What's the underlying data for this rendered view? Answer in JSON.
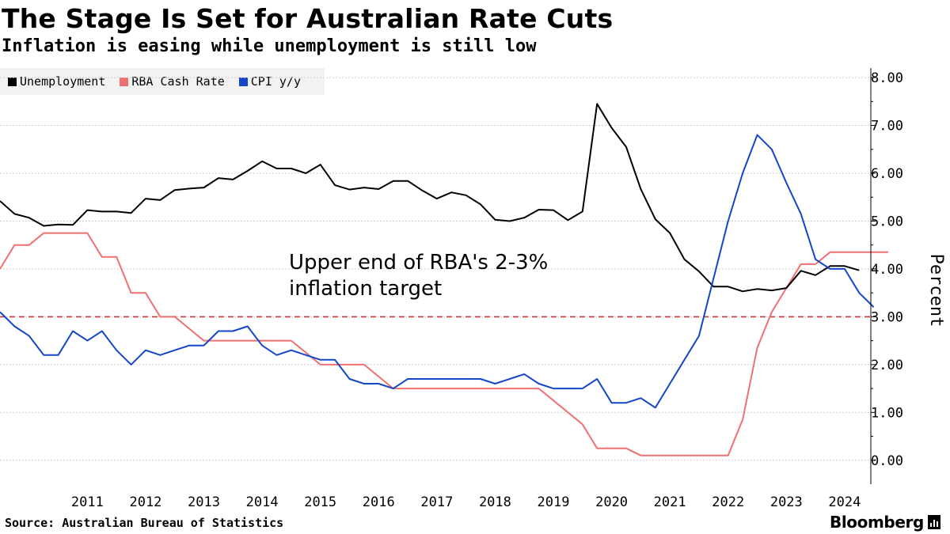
{
  "header": {
    "title": "The Stage Is Set for Australian Rate Cuts",
    "subtitle": "Inflation is easing while unemployment is still low"
  },
  "footer": {
    "source": "Source: Australian Bureau of Statistics",
    "brand": "Bloomberg"
  },
  "colors": {
    "unemployment": "#000000",
    "cash_rate": "#f07070",
    "cpi": "#1446c8",
    "target_line": "#c0393b",
    "grid": "#cfcfcf",
    "legend_bg": "#f2f2f2"
  },
  "chart_data": {
    "type": "line",
    "title": "The Stage Is Set for Australian Rate Cuts",
    "subtitle": "Inflation is easing while unemployment is still low",
    "xlabel": "",
    "ylabel": "Percent",
    "x_start": 2010.0,
    "x_step": 0.25,
    "xlim": [
      2010.0,
      2024.95
    ],
    "ylim": [
      -0.5,
      8.2
    ],
    "y_ticks": [
      "8.00",
      "7.00",
      "6.00",
      "5.00",
      "4.00",
      "3.00",
      "2.00",
      "1.00",
      "0.00"
    ],
    "y_tick_values": [
      8,
      7,
      6,
      5,
      4,
      3,
      2,
      1,
      0
    ],
    "x_ticks": [
      "2011",
      "2012",
      "2013",
      "2014",
      "2015",
      "2016",
      "2017",
      "2018",
      "2019",
      "2020",
      "2021",
      "2022",
      "2023",
      "2024"
    ],
    "x_tick_values": [
      2011,
      2012,
      2013,
      2014,
      2015,
      2016,
      2017,
      2018,
      2019,
      2020,
      2021,
      2022,
      2023,
      2024
    ],
    "legend_position": "top-left",
    "grid": true,
    "series": [
      {
        "name": "Unemployment",
        "key": "unemployment",
        "values": [
          5.42,
          5.15,
          5.07,
          4.9,
          4.93,
          4.92,
          5.23,
          5.2,
          5.2,
          5.17,
          5.47,
          5.44,
          5.65,
          5.68,
          5.7,
          5.9,
          5.87,
          6.05,
          6.25,
          6.1,
          6.1,
          6.0,
          6.18,
          5.75,
          5.66,
          5.7,
          5.67,
          5.84,
          5.84,
          5.64,
          5.47,
          5.6,
          5.54,
          5.35,
          5.03,
          5.0,
          5.07,
          5.24,
          5.23,
          5.02,
          5.2,
          7.45,
          6.95,
          6.55,
          5.67,
          5.04,
          4.75,
          4.2,
          3.95,
          3.63,
          3.63,
          3.53,
          3.58,
          3.55,
          3.6,
          3.96,
          3.87,
          4.06,
          4.06,
          3.97
        ]
      },
      {
        "name": "RBA Cash Rate",
        "key": "cash_rate",
        "values": [
          4.0,
          4.5,
          4.5,
          4.75,
          4.75,
          4.75,
          4.75,
          4.25,
          4.25,
          3.5,
          3.5,
          3.0,
          3.0,
          2.75,
          2.5,
          2.5,
          2.5,
          2.5,
          2.5,
          2.5,
          2.5,
          2.25,
          2.0,
          2.0,
          2.0,
          2.0,
          1.75,
          1.5,
          1.5,
          1.5,
          1.5,
          1.5,
          1.5,
          1.5,
          1.5,
          1.5,
          1.5,
          1.5,
          1.25,
          1.0,
          0.75,
          0.25,
          0.25,
          0.25,
          0.1,
          0.1,
          0.1,
          0.1,
          0.1,
          0.1,
          0.1,
          0.85,
          2.35,
          3.1,
          3.6,
          4.1,
          4.1,
          4.35,
          4.35,
          4.35,
          4.35,
          4.35
        ]
      },
      {
        "name": "CPI y/y",
        "key": "cpi",
        "values": [
          3.1,
          2.8,
          2.6,
          2.2,
          2.2,
          2.7,
          2.5,
          2.7,
          2.3,
          2.0,
          2.3,
          2.2,
          2.3,
          2.4,
          2.4,
          2.7,
          2.7,
          2.8,
          2.4,
          2.2,
          2.3,
          2.2,
          2.1,
          2.1,
          1.7,
          1.6,
          1.6,
          1.5,
          1.7,
          1.7,
          1.7,
          1.7,
          1.7,
          1.7,
          1.6,
          1.7,
          1.8,
          1.6,
          1.5,
          1.5,
          1.5,
          1.7,
          1.2,
          1.2,
          1.3,
          1.1,
          1.6,
          2.1,
          2.6,
          3.8,
          5.0,
          6.0,
          6.8,
          6.5,
          5.8,
          5.15,
          4.2,
          4.0,
          4.0,
          3.5,
          3.2
        ]
      }
    ],
    "reference_line": {
      "value": 3.0,
      "style": "dashed",
      "label_line1": "Upper end of RBA's 2-3%",
      "label_line2": "inflation target"
    }
  }
}
